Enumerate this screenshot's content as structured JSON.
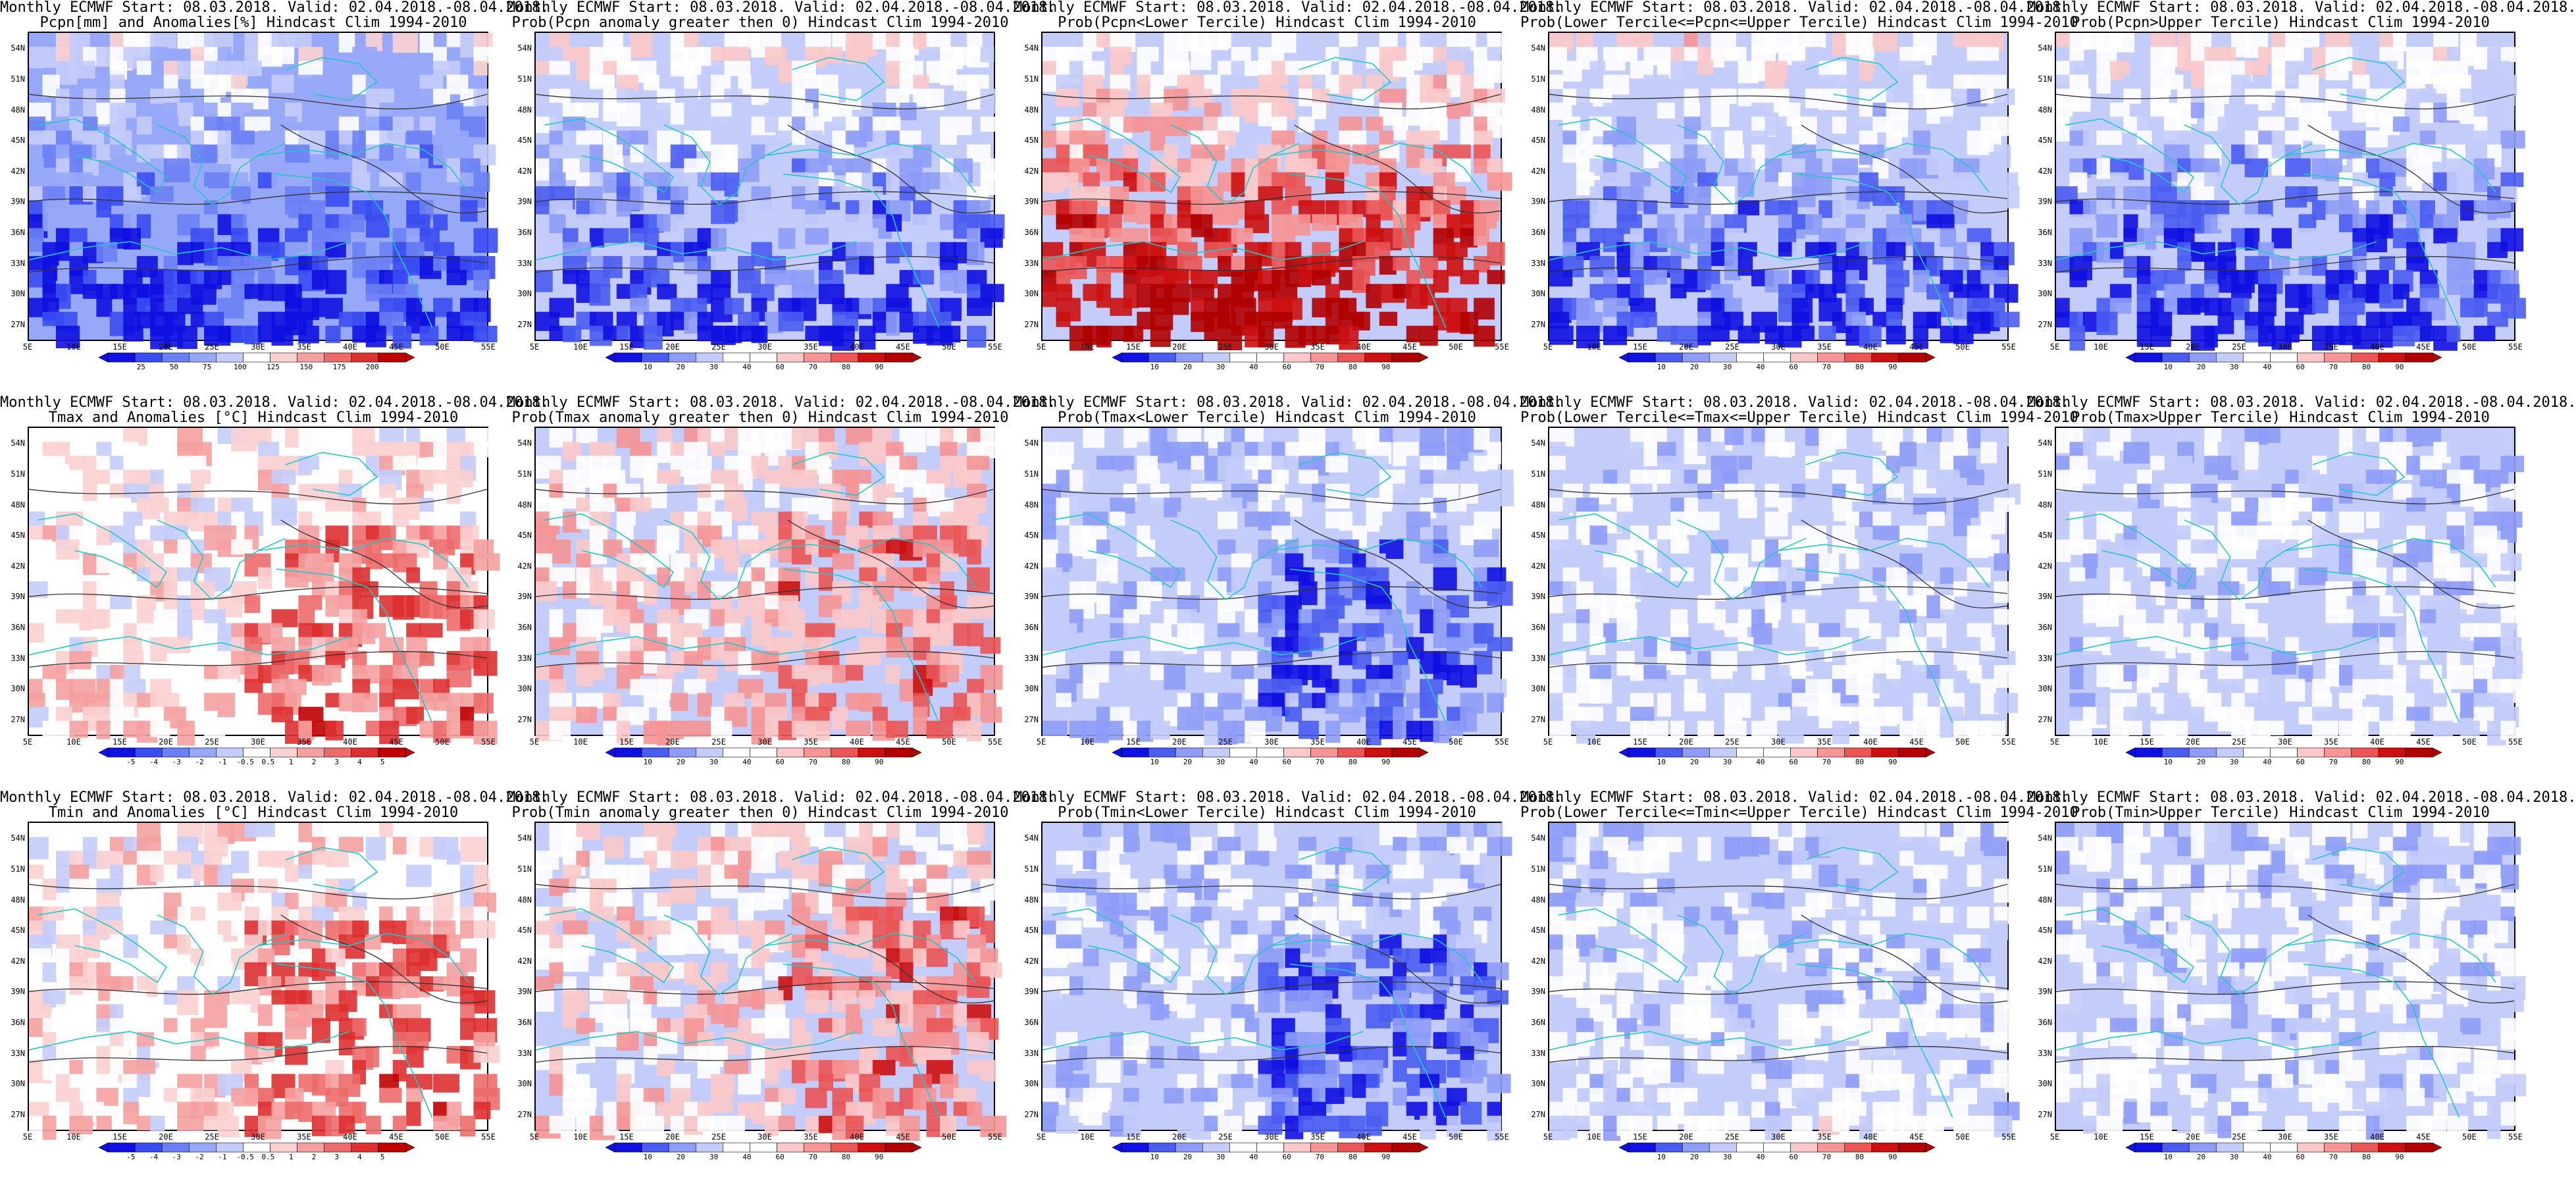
{
  "lat_ticks": [
    "54N",
    "51N",
    "48N",
    "45N",
    "42N",
    "39N",
    "36N",
    "33N",
    "30N",
    "27N"
  ],
  "lon_ticks": [
    "5E",
    "10E",
    "15E",
    "20E",
    "25E",
    "30E",
    "35E",
    "40E",
    "45E",
    "50E",
    "55E"
  ],
  "colors": {
    "prob_scale": [
      "#1010e0",
      "#4a5df0",
      "#8e9cf6",
      "#c4ccfa",
      "#ffffff",
      "#ffffff",
      "#fbc9c9",
      "#f59595",
      "#ea5555",
      "#cc1010",
      "#b00000"
    ],
    "anom_scale": [
      "#1010e0",
      "#3a4df0",
      "#6c7ff4",
      "#98a8f8",
      "#c4ccfa",
      "#ffffff",
      "#fbd0d0",
      "#f5a0a0",
      "#ec6c6c",
      "#dd3030",
      "#c00000"
    ],
    "coast": "#22c7c7",
    "contour": "#333333"
  },
  "panels": [
    {
      "title_line1": "Monthly ECMWF Start: 08.03.2018. Valid: 02.04.2018.-08.04.2018.",
      "title_line2": "Pcpn[mm] and Anomalies[%] Hindcast Clim 1994-2010",
      "variable": "precipitation",
      "field": "anomaly_pct",
      "colorbar_labels": [
        "25",
        "50",
        "75",
        "100",
        "125",
        "150",
        "175",
        "200"
      ]
    },
    {
      "title_line1": "Monthly ECMWF Start: 08.03.2018. Valid: 02.04.2018.-08.04.2018.",
      "title_line2": "Prob(Pcpn anomaly greater then 0) Hindcast Clim 1994-2010",
      "variable": "precipitation",
      "field": "prob",
      "colorbar_labels": [
        "10",
        "20",
        "30",
        "40",
        "60",
        "70",
        "80",
        "90"
      ]
    },
    {
      "title_line1": "Monthly ECMWF Start: 08.03.2018. Valid: 02.04.2018.-08.04.2018.",
      "title_line2": "Prob(Pcpn<Lower Tercile) Hindcast Clim 1994-2010",
      "variable": "precipitation",
      "field": "prob",
      "colorbar_labels": [
        "10",
        "20",
        "30",
        "40",
        "60",
        "70",
        "80",
        "90"
      ]
    },
    {
      "title_line1": "Monthly ECMWF Start: 08.03.2018. Valid: 02.04.2018.-08.04.2018.",
      "title_line2": "Prob(Lower Tercile<=Pcpn<=Upper Tercile) Hindcast Clim 1994-2010",
      "variable": "precipitation",
      "field": "prob",
      "colorbar_labels": [
        "10",
        "20",
        "30",
        "40",
        "60",
        "70",
        "80",
        "90"
      ]
    },
    {
      "title_line1": "Monthly ECMWF Start: 08.03.2018. Valid: 02.04.2018.-08.04.2018.",
      "title_line2": "Prob(Pcpn>Upper Tercile) Hindcast Clim 1994-2010",
      "variable": "precipitation",
      "field": "prob",
      "colorbar_labels": [
        "10",
        "20",
        "30",
        "40",
        "60",
        "70",
        "80",
        "90"
      ]
    },
    {
      "title_line1": "Monthly ECMWF Start: 08.03.2018. Valid: 02.04.2018.-08.04.2018.",
      "title_line2": "Tmax and Anomalies [°C] Hindcast Clim 1994-2010",
      "variable": "tmax",
      "field": "anomaly_c",
      "colorbar_labels": [
        "-5",
        "-4",
        "-3",
        "-2",
        "-1",
        "-0.5",
        "0.5",
        "1",
        "2",
        "3",
        "4",
        "5"
      ]
    },
    {
      "title_line1": "Monthly ECMWF Start: 08.03.2018. Valid: 02.04.2018.-08.04.2018.",
      "title_line2": "Prob(Tmax anomaly greater then 0) Hindcast Clim 1994-2010",
      "variable": "tmax",
      "field": "prob",
      "colorbar_labels": [
        "10",
        "20",
        "30",
        "40",
        "60",
        "70",
        "80",
        "90"
      ]
    },
    {
      "title_line1": "Monthly ECMWF Start: 08.03.2018. Valid: 02.04.2018.-08.04.2018.",
      "title_line2": "Prob(Tmax<Lower Tercile) Hindcast Clim 1994-2010",
      "variable": "tmax",
      "field": "prob",
      "colorbar_labels": [
        "10",
        "20",
        "30",
        "40",
        "60",
        "70",
        "80",
        "90"
      ]
    },
    {
      "title_line1": "Monthly ECMWF Start: 08.03.2018. Valid: 02.04.2018.-08.04.2018.",
      "title_line2": "Prob(Lower Tercile<=Tmax<=Upper Tercile) Hindcast Clim 1994-2010",
      "variable": "tmax",
      "field": "prob",
      "colorbar_labels": [
        "10",
        "20",
        "30",
        "40",
        "60",
        "70",
        "80",
        "90"
      ]
    },
    {
      "title_line1": "Monthly ECMWF Start: 08.03.2018. Valid: 02.04.2018.-08.04.2018.",
      "title_line2": "Prob(Tmax>Upper Tercile) Hindcast Clim 1994-2010",
      "variable": "tmax",
      "field": "prob",
      "colorbar_labels": [
        "10",
        "20",
        "30",
        "40",
        "60",
        "70",
        "80",
        "90"
      ]
    },
    {
      "title_line1": "Monthly ECMWF Start: 08.03.2018. Valid: 02.04.2018.-08.04.2018.",
      "title_line2": "Tmin and Anomalies [°C] Hindcast Clim 1994-2010",
      "variable": "tmin",
      "field": "anomaly_c",
      "colorbar_labels": [
        "-5",
        "-4",
        "-3",
        "-2",
        "-1",
        "-0.5",
        "0.5",
        "1",
        "2",
        "3",
        "4",
        "5"
      ]
    },
    {
      "title_line1": "Monthly ECMWF Start: 08.03.2018. Valid: 02.04.2018.-08.04.2018.",
      "title_line2": "Prob(Tmin anomaly greater then 0) Hindcast Clim 1994-2010",
      "variable": "tmin",
      "field": "prob",
      "colorbar_labels": [
        "10",
        "20",
        "30",
        "40",
        "60",
        "70",
        "80",
        "90"
      ]
    },
    {
      "title_line1": "Monthly ECMWF Start: 08.03.2018. Valid: 02.04.2018.-08.04.2018.",
      "title_line2": "Prob(Tmin<Lower Tercile) Hindcast Clim 1994-2010",
      "variable": "tmin",
      "field": "prob",
      "colorbar_labels": [
        "10",
        "20",
        "30",
        "40",
        "60",
        "70",
        "80",
        "90"
      ]
    },
    {
      "title_line1": "Monthly ECMWF Start: 08.03.2018. Valid: 02.04.2018.-08.04.2018.",
      "title_line2": "Prob(Lower Tercile<=Tmin<=Upper Tercile) Hindcast Clim 1994-2010",
      "variable": "tmin",
      "field": "prob",
      "colorbar_labels": [
        "10",
        "20",
        "30",
        "40",
        "60",
        "70",
        "80",
        "90"
      ]
    },
    {
      "title_line1": "Monthly ECMWF Start: 08.03.2018. Valid: 02.04.2018.-08.04.2018.",
      "title_line2": "Prob(Tmin>Upper Tercile) Hindcast Clim 1994-2010",
      "variable": "tmin",
      "field": "prob",
      "colorbar_labels": [
        "10",
        "20",
        "30",
        "40",
        "60",
        "70",
        "80",
        "90"
      ]
    }
  ]
}
